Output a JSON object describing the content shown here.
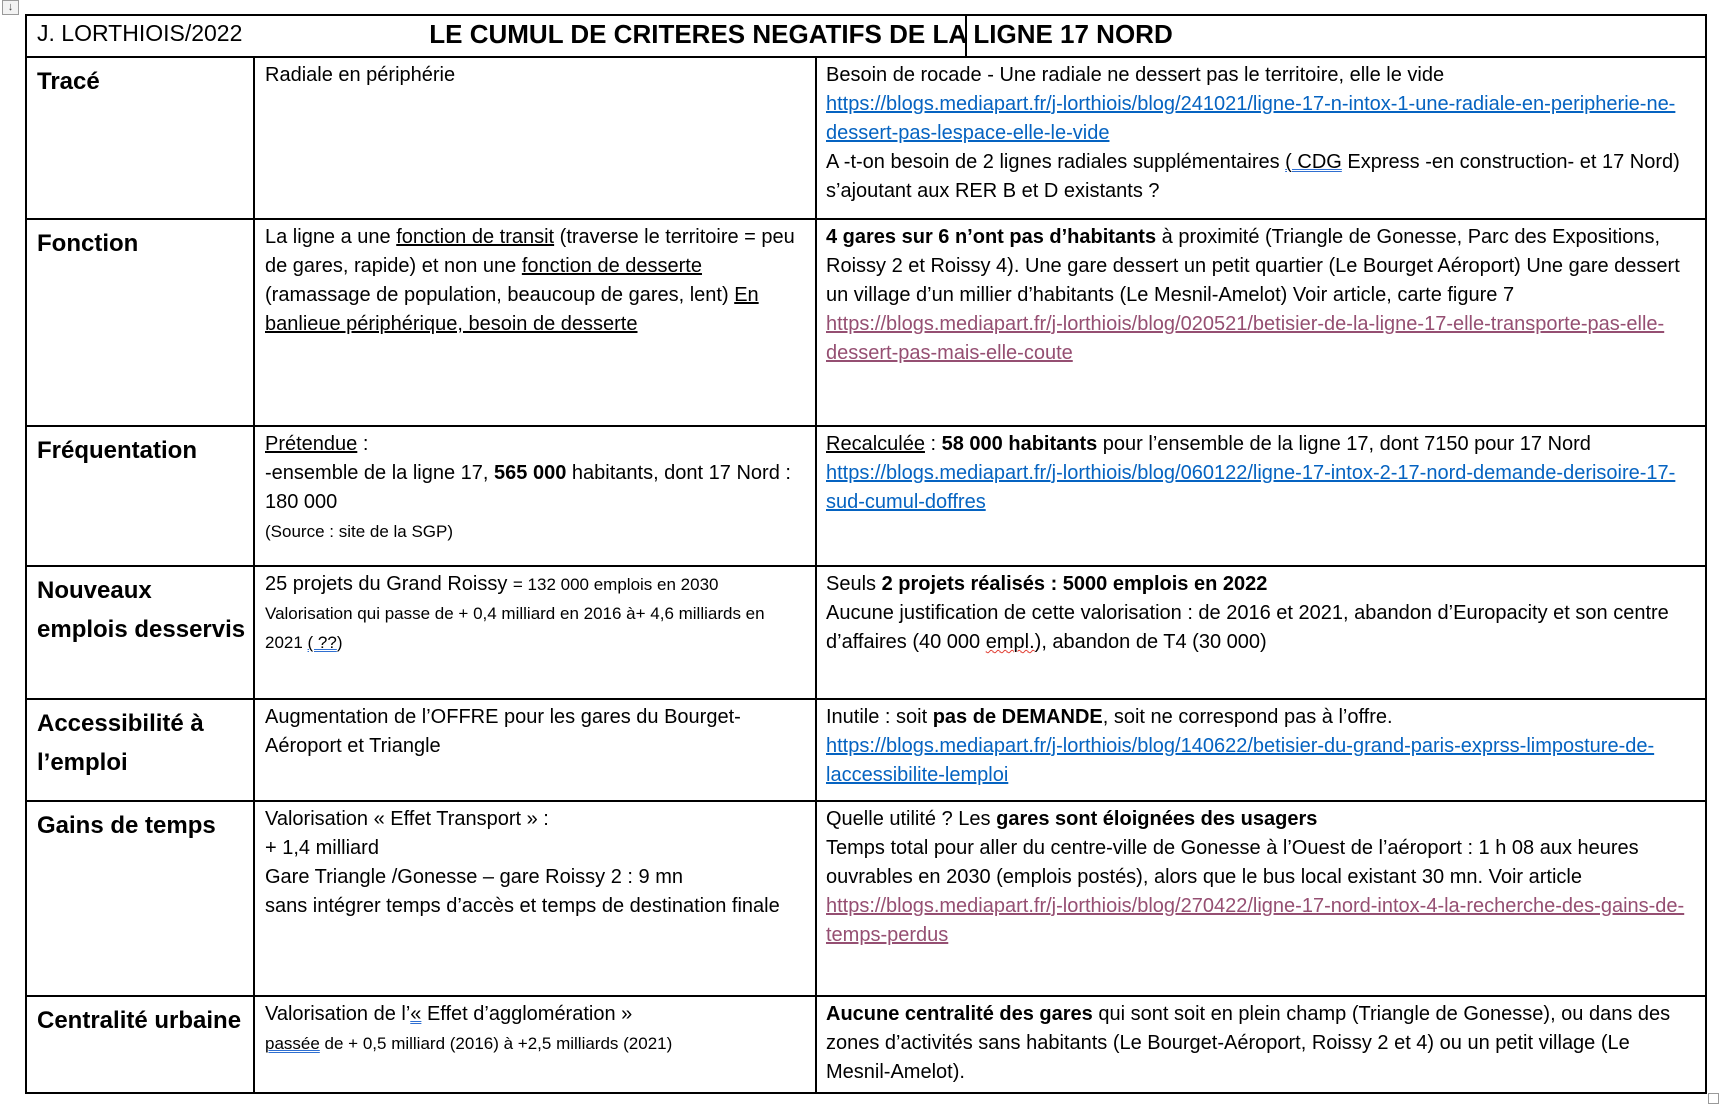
{
  "window": {
    "move_handle_glyph": "↓"
  },
  "colors": {
    "link": "#0563C1",
    "visited_link": "#954F72",
    "border": "#000000",
    "grammar_mark": "#2f6fd1",
    "spell_mark": "#e03c31"
  },
  "header": {
    "author": "J. LORTHIOIS/2022",
    "title": "LE CUMUL DE CRITERES NEGATIFS DE LA LIGNE 17 NORD"
  },
  "rows": [
    {
      "category": "Tracé",
      "claim": [
        {
          "text": "Radiale en périphérie"
        }
      ],
      "rebuttal": [
        {
          "text": "Besoin de rocade - Une radiale ne dessert pas le territoire, elle le vide\n"
        },
        {
          "text": "https://blogs.mediapart.fr/j-lorthiois/blog/241021/ligne-17-n-intox-1-une-radiale-en-peripherie-ne-dessert-pas-lespace-elle-le-vide",
          "style": [
            "link"
          ]
        },
        {
          "text": "\nA -t-on besoin de 2 lignes radiales supplémentaires "
        },
        {
          "text": "( CDG",
          "style": [
            "gram"
          ]
        },
        {
          "text": " Express -en construction- et 17 Nord) s’ajoutant aux RER B et D existants ?"
        }
      ]
    },
    {
      "category": "Fonction",
      "claim": [
        {
          "text": "La ligne a une "
        },
        {
          "text": "fonction de transit",
          "style": [
            "u"
          ]
        },
        {
          "text": " (traverse le territoire = peu de gares, rapide) et non une "
        },
        {
          "text": "fonction de desserte",
          "style": [
            "u"
          ]
        },
        {
          "text": " (ramassage de population, beaucoup de gares, lent) "
        },
        {
          "text": "En banlieue périphérique, besoin de desserte",
          "style": [
            "u"
          ]
        }
      ],
      "rebuttal": [
        {
          "text": "4 gares sur 6 n’ont pas d’habitants",
          "style": [
            "b"
          ]
        },
        {
          "text": " à proximité (Triangle de Gonesse, Parc des Expositions, Roissy 2 et Roissy 4). Une gare dessert un petit quartier (Le Bourget Aéroport) Une gare dessert un village d’un millier d’habitants (Le Mesnil-Amelot) Voir article, carte figure 7\n"
        },
        {
          "text": "https://blogs.mediapart.fr/j-lorthiois/blog/020521/betisier-de-la-ligne-17-elle-transporte-pas-elle-dessert-pas-mais-elle-coute",
          "style": [
            "vlink"
          ]
        }
      ]
    },
    {
      "category": "Fréquentation",
      "claim": [
        {
          "text": "Prétendue",
          "style": [
            "u"
          ]
        },
        {
          "text": " :\n-ensemble de la ligne 17, "
        },
        {
          "text": "565 000",
          "style": [
            "b"
          ]
        },
        {
          "text": " habitants, dont 17 Nord : 180 000\n"
        },
        {
          "text": "(Source : site de la SGP)",
          "style": [
            "sm"
          ]
        }
      ],
      "rebuttal": [
        {
          "text": "Recalculée",
          "style": [
            "u"
          ]
        },
        {
          "text": " : "
        },
        {
          "text": "58 000 habitants",
          "style": [
            "b"
          ]
        },
        {
          "text": " pour l’ensemble de la ligne 17, dont 7150 pour 17 Nord\n"
        },
        {
          "text": "https://blogs.mediapart.fr/j-lorthiois/blog/060122/ligne-17-intox-2-17-nord-demande-derisoire-17-sud-cumul-doffres",
          "style": [
            "link"
          ]
        }
      ]
    },
    {
      "category": "Nouveaux emplois desservis",
      "claim": [
        {
          "text": "25 projets du Grand Roissy "
        },
        {
          "text": "= 132 000 emplois en 2030\n",
          "style": [
            "sm"
          ]
        },
        {
          "text": "Valorisation qui passe de + 0,4 milliard en 2016 à+ 4,6 milliards en 2021 ",
          "style": [
            "sm"
          ]
        },
        {
          "text": "( ??",
          "style": [
            "sm",
            "gram"
          ]
        },
        {
          "text": ")",
          "style": [
            "sm"
          ]
        }
      ],
      "rebuttal": [
        {
          "text": "Seuls "
        },
        {
          "text": "2 projets réalisés : 5000 emplois en 2022",
          "style": [
            "b"
          ]
        },
        {
          "text": "\nAucune justification de cette valorisation : de 2016 et 2021, abandon d’Europacity et son centre d’affaires (40 000 "
        },
        {
          "text": "empl.",
          "style": [
            "sp"
          ]
        },
        {
          "text": "), abandon de T4 (30 000)"
        }
      ]
    },
    {
      "category": "Accessibilité à l’emploi",
      "claim": [
        {
          "text": "Augmentation de l’OFFRE pour les gares du Bourget-Aéroport et Triangle"
        }
      ],
      "rebuttal": [
        {
          "text": "Inutile : soit "
        },
        {
          "text": "pas de DEMANDE",
          "style": [
            "b"
          ]
        },
        {
          "text": ", soit ne correspond pas à l’offre.\n"
        },
        {
          "text": "https://blogs.mediapart.fr/j-lorthiois/blog/140622/betisier-du-grand-paris-exprss-limposture-de-laccessibilite-lemploi",
          "style": [
            "link"
          ]
        }
      ]
    },
    {
      "category": "Gains de temps",
      "claim": [
        {
          "text": "Valorisation « Effet Transport » :\n+ 1,4 milliard\nGare Triangle /Gonesse – gare Roissy 2 : 9 mn\nsans intégrer temps d’accès et temps de destination finale"
        }
      ],
      "rebuttal": [
        {
          "text": "Quelle utilité ? Les "
        },
        {
          "text": "gares sont éloignées des usagers",
          "style": [
            "b"
          ]
        },
        {
          "text": "\nTemps total pour aller du centre-ville de Gonesse à l’Ouest de l’aéroport : 1 h 08 aux heures ouvrables en 2030 (emplois postés), alors que le bus local existant 30 mn. Voir article\n"
        },
        {
          "text": "https://blogs.mediapart.fr/j-lorthiois/blog/270422/ligne-17-nord-intox-4-la-recherche-des-gains-de-temps-perdus",
          "style": [
            "vlink"
          ]
        }
      ]
    },
    {
      "category": "Centralité urbaine",
      "claim": [
        {
          "text": "Valorisation de l’"
        },
        {
          "text": "«",
          "style": [
            "gram"
          ]
        },
        {
          "text": " Effet d’agglomération »\n"
        },
        {
          "text": "passée",
          "style": [
            "sm",
            "gram"
          ]
        },
        {
          "text": " de + 0,5 milliard (2016) à +2,5 milliards (2021)",
          "style": [
            "sm"
          ]
        }
      ],
      "rebuttal": [
        {
          "text": "Aucune centralité des gares",
          "style": [
            "b"
          ]
        },
        {
          "text": " qui sont soit en plein champ (Triangle de Gonesse), ou dans des zones d’activités sans habitants (Le Bourget-Aéroport, Roissy 2 et 4) ou un petit village (Le Mesnil-Amelot)."
        }
      ]
    }
  ]
}
